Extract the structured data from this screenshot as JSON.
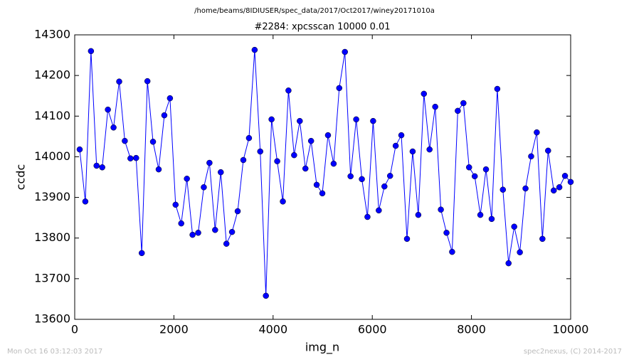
{
  "chart_data": {
    "type": "line",
    "suptitle": "/home/beams/8IDIUSER/spec_data/2017/Oct2017/winey20171010a",
    "title": "#2284: xpcsscan 10000 0.01",
    "x_label": "img_n",
    "y_label": "ccdc",
    "annotations": [
      "Mon Oct 16 03:12:03 2017",
      "spec2nexus, (C) 2014-2017"
    ],
    "x": [
      100,
      214,
      328,
      441,
      555,
      669,
      783,
      897,
      1010,
      1124,
      1238,
      1352,
      1466,
      1579,
      1693,
      1807,
      1921,
      2034,
      2148,
      2262,
      2376,
      2490,
      2603,
      2717,
      2831,
      2945,
      3059,
      3172,
      3286,
      3400,
      3514,
      3628,
      3741,
      3855,
      3969,
      4083,
      4197,
      4310,
      4424,
      4538,
      4652,
      4766,
      4879,
      4993,
      5107,
      5221,
      5334,
      5448,
      5562,
      5676,
      5790,
      5903,
      6017,
      6131,
      6245,
      6359,
      6472,
      6586,
      6700,
      6814,
      6928,
      7041,
      7155,
      7269,
      7383,
      7497,
      7610,
      7724,
      7838,
      7952,
      8066,
      8179,
      8293,
      8407,
      8521,
      8634,
      8748,
      8862,
      8976,
      9090,
      9203,
      9317,
      9431,
      9545,
      9659,
      9772,
      9886,
      10000
    ],
    "series": [
      {
        "name": "ccdc",
        "color": "#0000ff",
        "values": [
          14018,
          13890,
          14260,
          13978,
          13974,
          14116,
          14072,
          14185,
          14039,
          13996,
          13997,
          13763,
          14186,
          14037,
          13969,
          14102,
          14144,
          13882,
          13836,
          13946,
          13808,
          13813,
          13925,
          13985,
          13820,
          13962,
          13786,
          13815,
          13866,
          13992,
          14046,
          14263,
          14013,
          13658,
          14092,
          13989,
          13890,
          14163,
          14004,
          14088,
          13971,
          14039,
          13931,
          13910,
          14053,
          13983,
          14169,
          14258,
          13952,
          14092,
          13945,
          13852,
          14088,
          13868,
          13927,
          13953,
          14027,
          14053,
          13798,
          14013,
          13857,
          14155,
          14018,
          14123,
          13870,
          13813,
          13766,
          14113,
          14132,
          13974,
          13952,
          13857,
          13969,
          13847,
          14167,
          13919,
          13738,
          13828,
          13765,
          13922,
          14001,
          14060,
          13798,
          14015,
          13917,
          13925,
          13953,
          13938
        ]
      }
    ],
    "xlim": [
      0,
      10000
    ],
    "xticks": [
      0,
      2000,
      4000,
      6000,
      8000,
      10000
    ],
    "ylim": [
      13600,
      14300
    ],
    "yticks": [
      13600,
      13700,
      13800,
      13900,
      14000,
      14100,
      14200,
      14300
    ],
    "grid": false
  }
}
